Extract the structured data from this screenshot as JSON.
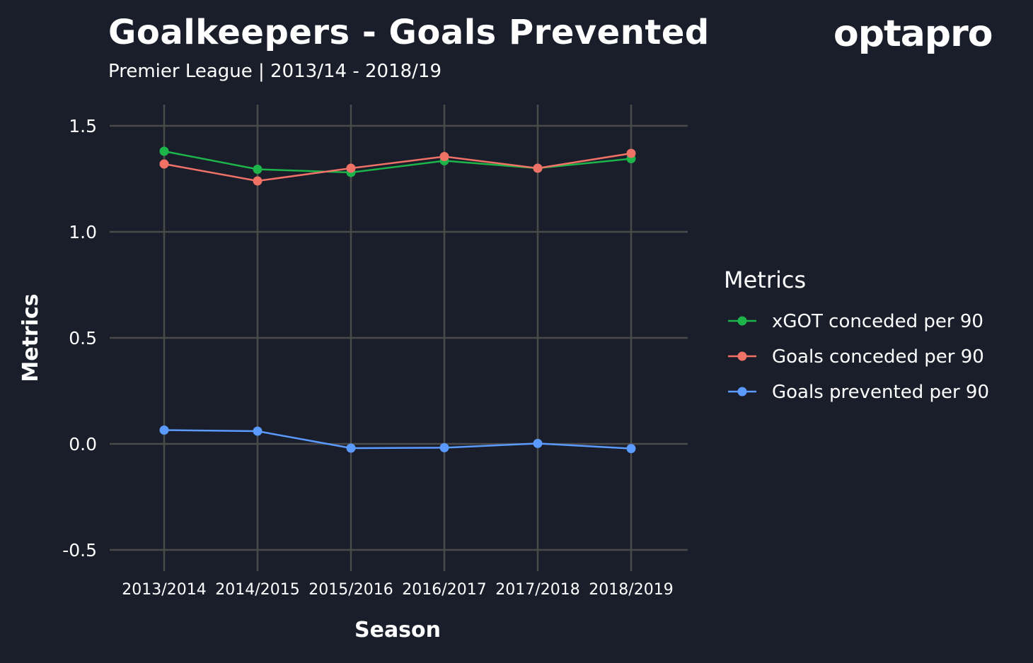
{
  "header": {
    "title": "Goalkeepers - Goals Prevented",
    "subtitle": "Premier League  |  2013/14 - 2018/19",
    "logo_text": "optapro"
  },
  "colors": {
    "background": "#1a1e2b",
    "grid": "#4a4a4a",
    "text": "#ffffff"
  },
  "chart_data": {
    "type": "line",
    "title": "Goalkeepers - Goals Prevented",
    "subtitle": "Premier League  |  2013/14 - 2018/19",
    "xlabel": "Season",
    "ylabel": "Metrics",
    "categories": [
      "2013/2014",
      "2014/2015",
      "2015/2016",
      "2016/2017",
      "2017/2018",
      "2018/2019"
    ],
    "yticks": [
      -0.5,
      0.0,
      0.5,
      1.0,
      1.5
    ],
    "ytick_labels": [
      "-0.5",
      "0.0",
      "0.5",
      "1.0",
      "1.5"
    ],
    "ylim": [
      -0.58,
      1.6
    ],
    "grid": true,
    "legend": {
      "title": "Metrics",
      "placement": "right"
    },
    "series": [
      {
        "name": "xGOT conceded per 90",
        "color": "#1db54a",
        "values": [
          1.38,
          1.295,
          1.28,
          1.335,
          1.3,
          1.345
        ]
      },
      {
        "name": "Goals conceded per 90",
        "color": "#f07267",
        "values": [
          1.32,
          1.24,
          1.3,
          1.355,
          1.3,
          1.37
        ]
      },
      {
        "name": "Goals prevented per 90",
        "color": "#5b9aff",
        "values": [
          0.065,
          0.06,
          -0.02,
          -0.018,
          0.002,
          -0.022
        ]
      }
    ]
  }
}
